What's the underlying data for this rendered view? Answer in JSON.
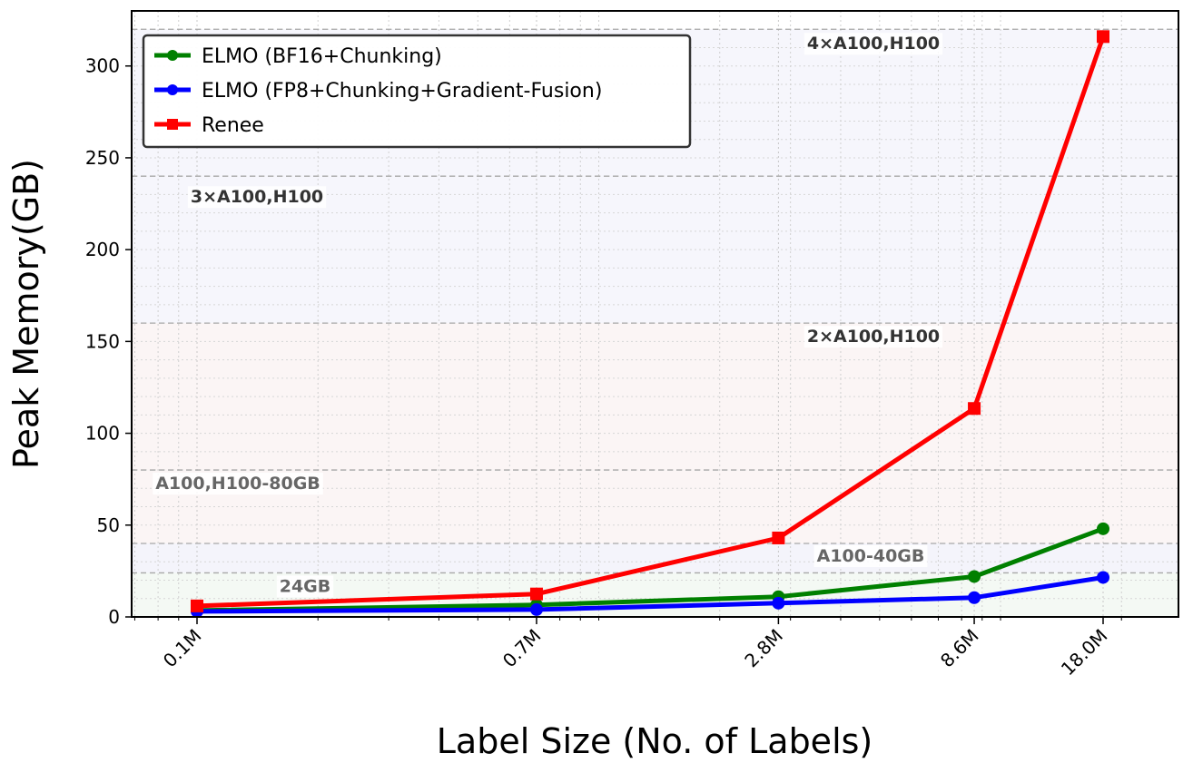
{
  "chart_data": {
    "type": "line",
    "xlabel": "Label Size (No. of Labels)",
    "ylabel": "Peak Memory(GB)",
    "x_scale": "log",
    "x": [
      0.1,
      0.7,
      2.8,
      8.6,
      18.0
    ],
    "x_unit": "M",
    "x_tick_labels": [
      "0.1M",
      "0.7M",
      "2.8M",
      "8.6M",
      "18.0M"
    ],
    "ylim": [
      0,
      330
    ],
    "y_ticks": [
      0,
      50,
      100,
      150,
      200,
      250,
      300
    ],
    "grid": true,
    "legend_position": "top-left",
    "series": [
      {
        "name": "ELMO (BF16+Chunking)",
        "color": "#008000",
        "marker": "circle",
        "values": [
          3.5,
          6.5,
          11,
          22,
          48
        ]
      },
      {
        "name": "ELMO (FP8+Chunking+Gradient-Fusion)",
        "color": "#0000ff",
        "marker": "circle",
        "values": [
          3,
          4,
          7.5,
          10.5,
          21.5
        ]
      },
      {
        "name": "Renee",
        "color": "#ff0000",
        "marker": "square",
        "values": [
          6,
          12.5,
          43,
          113.5,
          316
        ]
      }
    ],
    "memory_thresholds": [
      {
        "value": 24,
        "label": "24GB",
        "band_color": "#e6f2e6",
        "label_color": "#666666"
      },
      {
        "value": 40,
        "label": "A100-40GB",
        "band_color": "#e6e6f7",
        "label_color": "#666666"
      },
      {
        "value": 80,
        "label": "A100,H100-80GB",
        "band_color": "#f6e8e8",
        "label_color": "#666666"
      },
      {
        "value": 160,
        "label": "2×A100,H100",
        "band_color": "#f6e8e8",
        "label_color": "#333333"
      },
      {
        "value": 240,
        "label": "3×A100,H100",
        "band_color": "#ececf9",
        "label_color": "#333333"
      },
      {
        "value": 320,
        "label": "4×A100,H100",
        "band_color": "#ececf9",
        "label_color": "#333333"
      }
    ]
  }
}
